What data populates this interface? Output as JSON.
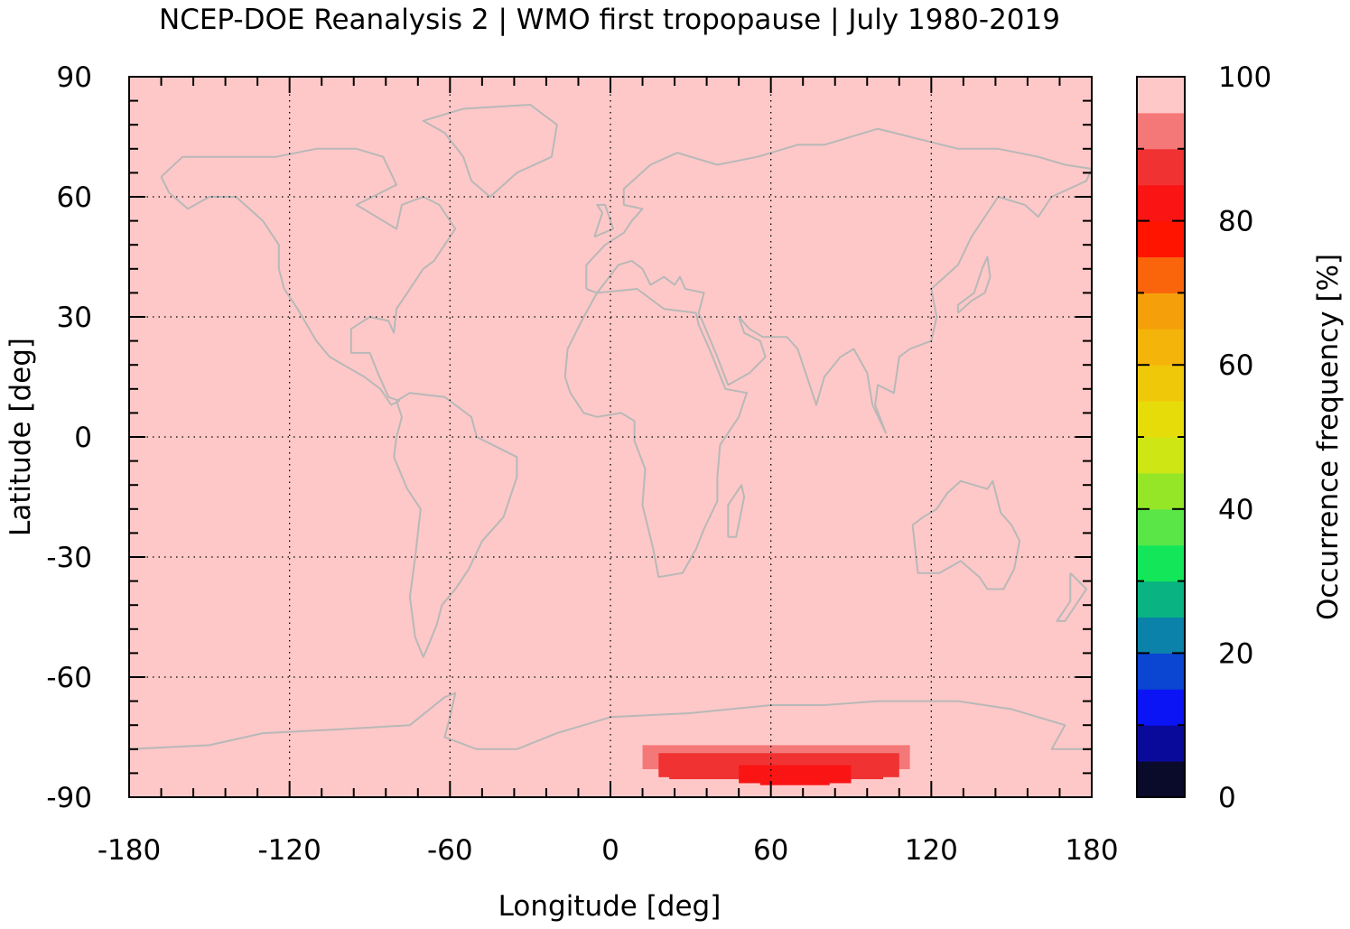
{
  "chart_data": {
    "type": "heatmap",
    "title": "NCEP-DOE Reanalysis 2 | WMO first tropopause | July 1980-2019",
    "xlabel": "Longitude [deg]",
    "ylabel": "Latitude [deg]",
    "xlim": [
      -180,
      180
    ],
    "ylim": [
      -90,
      90
    ],
    "xticks": [
      "-180",
      "-120",
      "-60",
      "0",
      "60",
      "120",
      "180"
    ],
    "yticks": [
      "90",
      "60",
      "30",
      "0",
      "-30",
      "-60",
      "-90"
    ],
    "grid": true,
    "background_value": 100,
    "background_color": "#ffc8c8",
    "coastline_color": "#b8b8b8",
    "colorbar": {
      "label": "Occurrence frequency [%]",
      "range": [
        0,
        100
      ],
      "ticks": [
        "0",
        "20",
        "40",
        "60",
        "80",
        "100"
      ],
      "bins": [
        {
          "from": 0,
          "to": 5,
          "color": "#0a0a2a"
        },
        {
          "from": 5,
          "to": 10,
          "color": "#0a0a9a"
        },
        {
          "from": 10,
          "to": 15,
          "color": "#0a14f5"
        },
        {
          "from": 15,
          "to": 20,
          "color": "#0a46d2"
        },
        {
          "from": 20,
          "to": 25,
          "color": "#0a82aa"
        },
        {
          "from": 25,
          "to": 30,
          "color": "#0ab482"
        },
        {
          "from": 30,
          "to": 35,
          "color": "#14e65a"
        },
        {
          "from": 35,
          "to": 40,
          "color": "#5ae646"
        },
        {
          "from": 40,
          "to": 45,
          "color": "#96e628"
        },
        {
          "from": 45,
          "to": 50,
          "color": "#cde614"
        },
        {
          "from": 50,
          "to": 55,
          "color": "#e6dc0a"
        },
        {
          "from": 55,
          "to": 60,
          "color": "#f0c80a"
        },
        {
          "from": 60,
          "to": 65,
          "color": "#f5b40a"
        },
        {
          "from": 65,
          "to": 70,
          "color": "#f5a00a"
        },
        {
          "from": 70,
          "to": 75,
          "color": "#fa640a"
        },
        {
          "from": 75,
          "to": 80,
          "color": "#ff1400"
        },
        {
          "from": 80,
          "to": 85,
          "color": "#fa1414"
        },
        {
          "from": 85,
          "to": 90,
          "color": "#f03232"
        },
        {
          "from": 90,
          "to": 95,
          "color": "#f57878"
        },
        {
          "from": 95,
          "to": 100,
          "color": "#ffc8c8"
        }
      ]
    },
    "anomaly_cells": [
      {
        "lon_from": 12,
        "lon_to": 112,
        "lat_from": -83,
        "lat_to": -77,
        "value": 92
      },
      {
        "lon_from": 18,
        "lon_to": 108,
        "lat_from": -85,
        "lat_to": -79,
        "value": 88
      },
      {
        "lon_from": 22,
        "lon_to": 102,
        "lat_from": -85.5,
        "lat_to": -80,
        "value": 87
      },
      {
        "lon_from": 48,
        "lon_to": 90,
        "lat_from": -86.5,
        "lat_to": -82,
        "value": 83
      },
      {
        "lon_from": 56,
        "lon_to": 82,
        "lat_from": -87,
        "lat_to": -83,
        "value": 81
      }
    ]
  }
}
